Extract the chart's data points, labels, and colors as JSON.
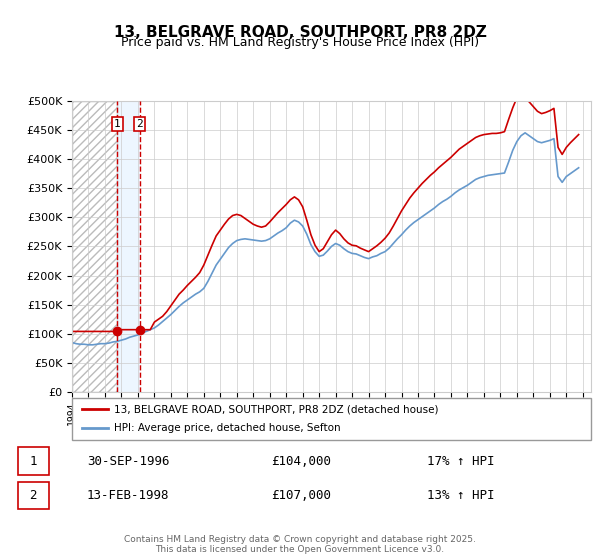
{
  "title": "13, BELGRAVE ROAD, SOUTHPORT, PR8 2DZ",
  "subtitle": "Price paid vs. HM Land Registry's House Price Index (HPI)",
  "legend_line1": "13, BELGRAVE ROAD, SOUTHPORT, PR8 2DZ (detached house)",
  "legend_line2": "HPI: Average price, detached house, Sefton",
  "footer": "Contains HM Land Registry data © Crown copyright and database right 2025.\nThis data is licensed under the Open Government Licence v3.0.",
  "sale1_date": "30-SEP-1996",
  "sale1_price": 104000,
  "sale1_hpi": "17% ↑ HPI",
  "sale2_date": "13-FEB-1998",
  "sale2_price": 107000,
  "sale2_hpi": "13% ↑ HPI",
  "sale1_x": 1996.75,
  "sale2_x": 1998.11,
  "price_color": "#cc0000",
  "hpi_color": "#6699cc",
  "vline1_color": "#cc0000",
  "vline2_color": "#cc0000",
  "shade_color": "#ddeeff",
  "ylim": [
    0,
    500000
  ],
  "xlim": [
    1994.0,
    2025.5
  ],
  "yticks": [
    0,
    50000,
    100000,
    150000,
    200000,
    250000,
    300000,
    350000,
    400000,
    450000,
    500000
  ],
  "xticks": [
    1994,
    1995,
    1996,
    1997,
    1998,
    1999,
    2000,
    2001,
    2002,
    2003,
    2004,
    2005,
    2006,
    2007,
    2008,
    2009,
    2010,
    2011,
    2012,
    2013,
    2014,
    2015,
    2016,
    2017,
    2018,
    2019,
    2020,
    2021,
    2022,
    2023,
    2024,
    2025
  ],
  "hpi_data_x": [
    1994.0,
    1994.25,
    1994.5,
    1994.75,
    1995.0,
    1995.25,
    1995.5,
    1995.75,
    1996.0,
    1996.25,
    1996.5,
    1996.75,
    1997.0,
    1997.25,
    1997.5,
    1997.75,
    1998.0,
    1998.25,
    1998.5,
    1998.75,
    1999.0,
    1999.25,
    1999.5,
    1999.75,
    2000.0,
    2000.25,
    2000.5,
    2000.75,
    2001.0,
    2001.25,
    2001.5,
    2001.75,
    2002.0,
    2002.25,
    2002.5,
    2002.75,
    2003.0,
    2003.25,
    2003.5,
    2003.75,
    2004.0,
    2004.25,
    2004.5,
    2004.75,
    2005.0,
    2005.25,
    2005.5,
    2005.75,
    2006.0,
    2006.25,
    2006.5,
    2006.75,
    2007.0,
    2007.25,
    2007.5,
    2007.75,
    2008.0,
    2008.25,
    2008.5,
    2008.75,
    2009.0,
    2009.25,
    2009.5,
    2009.75,
    2010.0,
    2010.25,
    2010.5,
    2010.75,
    2011.0,
    2011.25,
    2011.5,
    2011.75,
    2012.0,
    2012.25,
    2012.5,
    2012.75,
    2013.0,
    2013.25,
    2013.5,
    2013.75,
    2014.0,
    2014.25,
    2014.5,
    2014.75,
    2015.0,
    2015.25,
    2015.5,
    2015.75,
    2016.0,
    2016.25,
    2016.5,
    2016.75,
    2017.0,
    2017.25,
    2017.5,
    2017.75,
    2018.0,
    2018.25,
    2018.5,
    2018.75,
    2019.0,
    2019.25,
    2019.5,
    2019.75,
    2020.0,
    2020.25,
    2020.5,
    2020.75,
    2021.0,
    2021.25,
    2021.5,
    2021.75,
    2022.0,
    2022.25,
    2022.5,
    2022.75,
    2023.0,
    2023.25,
    2023.5,
    2023.75,
    2024.0,
    2024.25,
    2024.5,
    2024.75
  ],
  "hpi_data_y": [
    85000,
    83000,
    82000,
    82000,
    81000,
    81000,
    82000,
    83000,
    83000,
    84000,
    86000,
    87000,
    89000,
    91000,
    94000,
    96000,
    98000,
    101000,
    104000,
    107000,
    110000,
    115000,
    121000,
    127000,
    133000,
    140000,
    147000,
    153000,
    158000,
    163000,
    168000,
    172000,
    178000,
    190000,
    204000,
    218000,
    228000,
    238000,
    248000,
    255000,
    260000,
    262000,
    263000,
    262000,
    261000,
    260000,
    259000,
    260000,
    263000,
    268000,
    273000,
    277000,
    282000,
    290000,
    295000,
    292000,
    285000,
    271000,
    253000,
    241000,
    233000,
    235000,
    242000,
    250000,
    255000,
    252000,
    246000,
    241000,
    238000,
    237000,
    234000,
    231000,
    229000,
    232000,
    234000,
    238000,
    241000,
    247000,
    255000,
    263000,
    270000,
    278000,
    285000,
    291000,
    296000,
    301000,
    306000,
    311000,
    316000,
    322000,
    327000,
    331000,
    336000,
    342000,
    347000,
    351000,
    355000,
    360000,
    365000,
    368000,
    370000,
    372000,
    373000,
    374000,
    375000,
    376000,
    395000,
    415000,
    430000,
    440000,
    445000,
    440000,
    435000,
    430000,
    428000,
    430000,
    432000,
    435000,
    370000,
    360000,
    370000,
    375000,
    380000,
    385000
  ],
  "price_data_x": [
    1994.0,
    1994.25,
    1994.5,
    1994.75,
    1995.0,
    1995.25,
    1995.5,
    1995.75,
    1996.0,
    1996.25,
    1996.5,
    1996.75,
    1997.0,
    1997.25,
    1997.5,
    1997.75,
    1998.0,
    1998.25,
    1998.5,
    1998.75,
    1999.0,
    1999.25,
    1999.5,
    1999.75,
    2000.0,
    2000.25,
    2000.5,
    2000.75,
    2001.0,
    2001.25,
    2001.5,
    2001.75,
    2002.0,
    2002.25,
    2002.5,
    2002.75,
    2003.0,
    2003.25,
    2003.5,
    2003.75,
    2004.0,
    2004.25,
    2004.5,
    2004.75,
    2005.0,
    2005.25,
    2005.5,
    2005.75,
    2006.0,
    2006.25,
    2006.5,
    2006.75,
    2007.0,
    2007.25,
    2007.5,
    2007.75,
    2008.0,
    2008.25,
    2008.5,
    2008.75,
    2009.0,
    2009.25,
    2009.5,
    2009.75,
    2010.0,
    2010.25,
    2010.5,
    2010.75,
    2011.0,
    2011.25,
    2011.5,
    2011.75,
    2012.0,
    2012.25,
    2012.5,
    2012.75,
    2013.0,
    2013.25,
    2013.5,
    2013.75,
    2014.0,
    2014.25,
    2014.5,
    2014.75,
    2015.0,
    2015.25,
    2015.5,
    2015.75,
    2016.0,
    2016.25,
    2016.5,
    2016.75,
    2017.0,
    2017.25,
    2017.5,
    2017.75,
    2018.0,
    2018.25,
    2018.5,
    2018.75,
    2019.0,
    2019.25,
    2019.5,
    2019.75,
    2020.0,
    2020.25,
    2020.5,
    2020.75,
    2021.0,
    2021.25,
    2021.5,
    2021.75,
    2022.0,
    2022.25,
    2022.5,
    2022.75,
    2023.0,
    2023.25,
    2023.5,
    2023.75,
    2024.0,
    2024.25,
    2024.5,
    2024.75
  ],
  "price_data_y": [
    104000,
    104000,
    104000,
    104000,
    104000,
    104000,
    104000,
    104000,
    104000,
    104000,
    104000,
    104000,
    107000,
    107000,
    107000,
    107000,
    107000,
    107000,
    107000,
    107000,
    120000,
    125000,
    130000,
    138000,
    148000,
    158000,
    168000,
    175000,
    183000,
    190000,
    197000,
    205000,
    218000,
    235000,
    252000,
    268000,
    278000,
    288000,
    297000,
    303000,
    305000,
    303000,
    298000,
    293000,
    288000,
    285000,
    283000,
    285000,
    292000,
    300000,
    308000,
    315000,
    322000,
    330000,
    335000,
    330000,
    318000,
    295000,
    270000,
    252000,
    241000,
    246000,
    258000,
    270000,
    278000,
    272000,
    263000,
    256000,
    252000,
    251000,
    247000,
    244000,
    241000,
    246000,
    251000,
    257000,
    264000,
    273000,
    285000,
    298000,
    311000,
    322000,
    333000,
    342000,
    350000,
    358000,
    365000,
    372000,
    378000,
    385000,
    391000,
    397000,
    403000,
    410000,
    417000,
    422000,
    427000,
    432000,
    437000,
    440000,
    442000,
    443000,
    444000,
    444000,
    445000,
    447000,
    468000,
    488000,
    505000,
    510000,
    505000,
    498000,
    490000,
    482000,
    478000,
    480000,
    483000,
    487000,
    420000,
    408000,
    420000,
    428000,
    435000,
    442000
  ],
  "bg_hatch_color": "#cccccc"
}
